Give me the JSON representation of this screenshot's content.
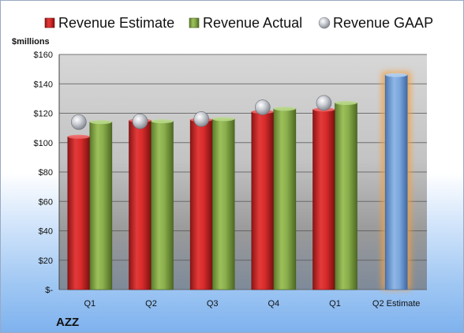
{
  "chart_data": {
    "type": "bar",
    "title": "",
    "ylabel": "$millions",
    "xlabel": "",
    "ticker": "AZZ",
    "categories": [
      "Q1",
      "Q2",
      "Q3",
      "Q4",
      "Q1",
      "Q2 Estimate"
    ],
    "ylim": [
      0,
      160
    ],
    "y_ticks": [
      0,
      20,
      40,
      60,
      80,
      100,
      120,
      140,
      160
    ],
    "y_tick_labels": [
      "$-",
      "$20",
      "$40",
      "$60",
      "$80",
      "$100",
      "$120",
      "$140",
      "$160"
    ],
    "grid": true,
    "legend_position": "top",
    "series": [
      {
        "name": "Revenue Estimate",
        "kind": "bar",
        "color": "#d42a2a",
        "values": [
          104,
          115,
          115.5,
          121,
          122.5,
          null
        ]
      },
      {
        "name": "Revenue Actual",
        "kind": "bar",
        "color": "#86a84a",
        "values": [
          114,
          114.5,
          116,
          123,
          127,
          null
        ]
      },
      {
        "name": "Revenue GAAP",
        "kind": "marker",
        "color": "#b8bcc4",
        "values": [
          114,
          114.5,
          116,
          124,
          127,
          null
        ]
      }
    ],
    "projection": {
      "category_index": 5,
      "value": 146,
      "color": "#6f9fd8",
      "glow": "#f4a040"
    }
  }
}
